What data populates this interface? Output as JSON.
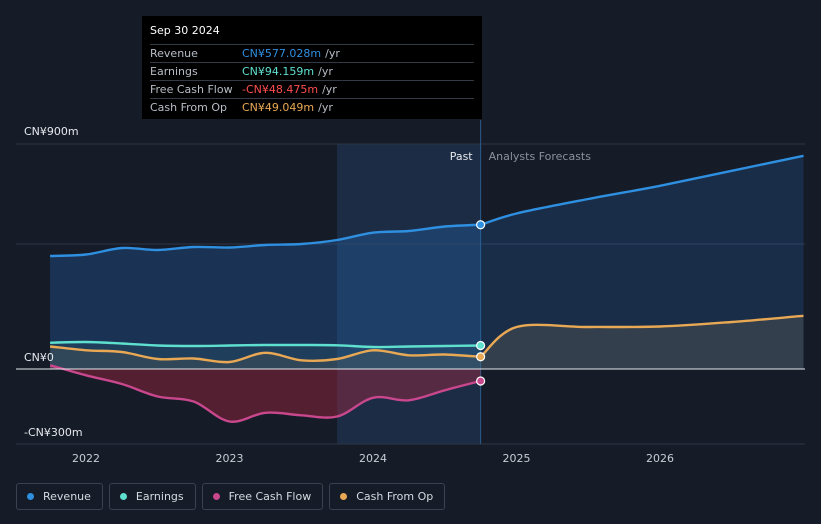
{
  "tooltip": {
    "date": "Sep 30 2024",
    "rows": [
      {
        "label": "Revenue",
        "value": "CN¥577.028m",
        "unit": "/yr",
        "color": "#2f8fe0"
      },
      {
        "label": "Earnings",
        "value": "CN¥94.159m",
        "unit": "/yr",
        "color": "#5fe0cf"
      },
      {
        "label": "Free Cash Flow",
        "value": "-CN¥48.475m",
        "unit": "/yr",
        "color": "#ff4d4d"
      },
      {
        "label": "Cash From Op",
        "value": "CN¥49.049m",
        "unit": "/yr",
        "color": "#e8a854"
      }
    ]
  },
  "legend": [
    {
      "label": "Revenue",
      "color": "#2f8fe0"
    },
    {
      "label": "Earnings",
      "color": "#5fe0cf"
    },
    {
      "label": "Free Cash Flow",
      "color": "#c9478c"
    },
    {
      "label": "Cash From Op",
      "color": "#e8a854"
    }
  ],
  "chart_data": {
    "type": "line",
    "y_labels": {
      "top": "CN¥900m",
      "zero": "CN¥0",
      "bottom": "-CN¥300m"
    },
    "ylim": [
      -300,
      900
    ],
    "xlim": [
      2021.7,
      2027.0
    ],
    "x_ticks": [
      {
        "value": 2022,
        "label": "2022"
      },
      {
        "value": 2023,
        "label": "2023"
      },
      {
        "value": 2024,
        "label": "2024"
      },
      {
        "value": 2025,
        "label": "2025"
      },
      {
        "value": 2026,
        "label": "2026"
      }
    ],
    "divider_x": 2024.75,
    "highlight_start": 2023.75,
    "past_label": "Past",
    "forecast_label": "Analysts Forecasts",
    "series": [
      {
        "name": "Revenue",
        "color": "#2f8fe0",
        "past": [
          [
            2021.75,
            452
          ],
          [
            2022.0,
            458
          ],
          [
            2022.25,
            484
          ],
          [
            2022.5,
            476
          ],
          [
            2022.75,
            488
          ],
          [
            2023.0,
            486
          ],
          [
            2023.25,
            496
          ],
          [
            2023.5,
            500
          ],
          [
            2023.75,
            516
          ],
          [
            2024.0,
            545
          ],
          [
            2024.25,
            552
          ],
          [
            2024.5,
            570
          ],
          [
            2024.75,
            577
          ]
        ],
        "forecast": [
          [
            2024.75,
            577
          ],
          [
            2025.0,
            622
          ],
          [
            2025.5,
            680
          ],
          [
            2026.0,
            733
          ],
          [
            2026.5,
            793
          ],
          [
            2027.0,
            853
          ]
        ]
      },
      {
        "name": "Earnings",
        "color": "#5fe0cf",
        "past": [
          [
            2021.75,
            105
          ],
          [
            2022.0,
            108
          ],
          [
            2022.25,
            102
          ],
          [
            2022.5,
            94
          ],
          [
            2022.75,
            92
          ],
          [
            2023.0,
            94
          ],
          [
            2023.25,
            96
          ],
          [
            2023.5,
            96
          ],
          [
            2023.75,
            95
          ],
          [
            2024.0,
            88
          ],
          [
            2024.25,
            90
          ],
          [
            2024.5,
            92
          ],
          [
            2024.75,
            94
          ]
        ],
        "forecast": []
      },
      {
        "name": "Free Cash Flow",
        "color": "#c9478c",
        "past": [
          [
            2021.75,
            15
          ],
          [
            2022.0,
            -25
          ],
          [
            2022.25,
            -60
          ],
          [
            2022.5,
            -110
          ],
          [
            2022.75,
            -130
          ],
          [
            2023.0,
            -210
          ],
          [
            2023.25,
            -175
          ],
          [
            2023.5,
            -185
          ],
          [
            2023.75,
            -190
          ],
          [
            2024.0,
            -115
          ],
          [
            2024.25,
            -125
          ],
          [
            2024.5,
            -85
          ],
          [
            2024.75,
            -48
          ]
        ],
        "forecast": []
      },
      {
        "name": "Cash From Op",
        "color": "#e8a854",
        "past": [
          [
            2021.75,
            90
          ],
          [
            2022.0,
            75
          ],
          [
            2022.25,
            68
          ],
          [
            2022.5,
            40
          ],
          [
            2022.75,
            42
          ],
          [
            2023.0,
            28
          ],
          [
            2023.25,
            65
          ],
          [
            2023.5,
            35
          ],
          [
            2023.75,
            40
          ],
          [
            2024.0,
            75
          ],
          [
            2024.25,
            55
          ],
          [
            2024.5,
            58
          ],
          [
            2024.75,
            49
          ]
        ],
        "forecast": [
          [
            2024.75,
            49
          ],
          [
            2025.0,
            168
          ],
          [
            2025.5,
            168
          ],
          [
            2026.0,
            170
          ],
          [
            2026.5,
            188
          ],
          [
            2027.0,
            213
          ]
        ]
      }
    ]
  }
}
